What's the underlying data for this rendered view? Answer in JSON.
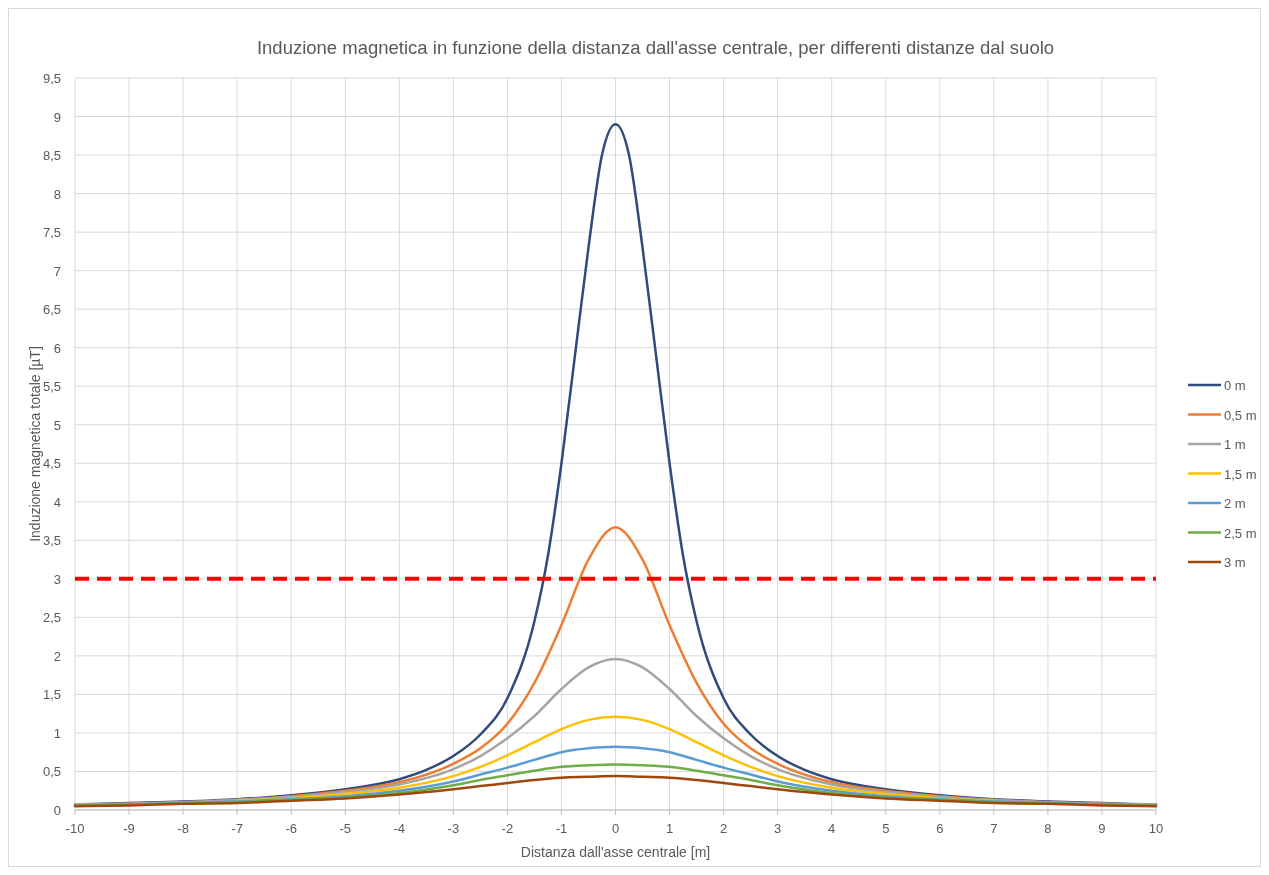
{
  "chart_data": {
    "type": "line",
    "title": "Induzione magnetica  in funzione della distanza dall'asse centrale, per differenti distanze dal suolo",
    "xlabel": "Distanza dall'asse centrale [m]",
    "ylabel": "Induzione magnetica totale [µT]",
    "xlim": [
      -10,
      10
    ],
    "xticks": [
      -10,
      -9,
      -8,
      -7,
      -6,
      -5,
      -4,
      -3,
      -2,
      -1,
      0,
      1,
      2,
      3,
      4,
      5,
      6,
      7,
      8,
      9,
      10
    ],
    "ylim": [
      0,
      9.5
    ],
    "yticks": [
      0,
      {
        "value": 0.5,
        "label": "0,5"
      },
      1,
      {
        "value": 1.5,
        "label": "1,5"
      },
      2,
      {
        "value": 2.5,
        "label": "2,5"
      },
      3,
      {
        "value": 3.5,
        "label": "3,5"
      },
      4,
      {
        "value": 4.5,
        "label": "4,5"
      },
      5,
      {
        "value": 5.5,
        "label": "5,5"
      },
      6,
      {
        "value": 6.5,
        "label": "6,5"
      },
      7,
      {
        "value": 7.5,
        "label": "7,5"
      },
      8,
      {
        "value": 8.5,
        "label": "8,5"
      },
      9,
      {
        "value": 9.5,
        "label": "9,5"
      }
    ],
    "grid": true,
    "legend": "right",
    "marker": "none",
    "ref_lines": [
      {
        "axis": "y",
        "value": 3,
        "color": "#ff0000",
        "line_style": "dashed"
      }
    ],
    "series": [
      {
        "name": "0 m",
        "color": "#2f4b7c",
        "x": [
          -10,
          -9,
          -8,
          -7,
          -6,
          -5,
          -4,
          -3.5,
          -3,
          -2.5,
          -2,
          -1.5,
          -1.25,
          -1,
          -0.75,
          -0.5,
          -0.25,
          0,
          0.25,
          0.5,
          0.75,
          1,
          1.25,
          1.5,
          2,
          2.5,
          3,
          3.5,
          4,
          5,
          6,
          7,
          8,
          9,
          10
        ],
        "values": [
          0.07,
          0.09,
          0.11,
          0.14,
          0.19,
          0.27,
          0.4,
          0.52,
          0.7,
          0.98,
          1.45,
          2.45,
          3.3,
          4.5,
          5.9,
          7.3,
          8.5,
          8.9,
          8.5,
          7.3,
          5.9,
          4.5,
          3.3,
          2.45,
          1.45,
          0.98,
          0.7,
          0.52,
          0.4,
          0.27,
          0.19,
          0.14,
          0.11,
          0.09,
          0.07
        ]
      },
      {
        "name": "0,5 m",
        "color": "#ed7d31",
        "x": [
          -10,
          -9,
          -8,
          -7,
          -6,
          -5,
          -4,
          -3,
          -2.5,
          -2,
          -1.5,
          -1,
          -0.5,
          0,
          0.5,
          1,
          1.5,
          2,
          2.5,
          3,
          4,
          5,
          6,
          7,
          8,
          9,
          10
        ],
        "values": [
          0.07,
          0.08,
          0.1,
          0.13,
          0.18,
          0.25,
          0.36,
          0.6,
          0.8,
          1.12,
          1.65,
          2.4,
          3.25,
          3.67,
          3.25,
          2.4,
          1.65,
          1.12,
          0.8,
          0.6,
          0.36,
          0.25,
          0.18,
          0.13,
          0.1,
          0.08,
          0.07
        ]
      },
      {
        "name": "1 m",
        "color": "#a5a5a5",
        "x": [
          -10,
          -9,
          -8,
          -7,
          -6,
          -5,
          -4,
          -3,
          -2.5,
          -2,
          -1.5,
          -1,
          -0.5,
          0,
          0.5,
          1,
          1.5,
          2,
          2.5,
          3,
          4,
          5,
          6,
          7,
          8,
          9,
          10
        ],
        "values": [
          0.07,
          0.08,
          0.1,
          0.13,
          0.17,
          0.23,
          0.33,
          0.53,
          0.7,
          0.93,
          1.22,
          1.57,
          1.85,
          1.96,
          1.85,
          1.57,
          1.22,
          0.93,
          0.7,
          0.53,
          0.33,
          0.23,
          0.17,
          0.13,
          0.1,
          0.08,
          0.07
        ]
      },
      {
        "name": "1,5 m",
        "color": "#ffc000",
        "x": [
          -7,
          -6,
          -5,
          -4,
          -3,
          -2.5,
          -2,
          -1.5,
          -1,
          -0.5,
          0,
          0.5,
          1,
          1.5,
          2,
          2.5,
          3,
          4,
          5,
          6,
          7
        ],
        "values": [
          0.12,
          0.15,
          0.21,
          0.29,
          0.44,
          0.56,
          0.71,
          0.88,
          1.05,
          1.17,
          1.21,
          1.17,
          1.05,
          0.88,
          0.71,
          0.56,
          0.44,
          0.29,
          0.21,
          0.15,
          0.12
        ]
      },
      {
        "name": "2 m",
        "color": "#5b9bd5",
        "x": [
          -10,
          -9,
          -8,
          -7,
          -6,
          -5,
          -4,
          -3,
          -2.5,
          -2,
          -1.5,
          -1,
          -0.5,
          0,
          0.5,
          1,
          1.5,
          2,
          2.5,
          3,
          4,
          5,
          6,
          7,
          8,
          9,
          10
        ],
        "values": [
          0.06,
          0.07,
          0.09,
          0.11,
          0.14,
          0.18,
          0.25,
          0.37,
          0.46,
          0.55,
          0.65,
          0.75,
          0.8,
          0.82,
          0.8,
          0.75,
          0.65,
          0.55,
          0.46,
          0.37,
          0.25,
          0.18,
          0.14,
          0.11,
          0.09,
          0.07,
          0.06
        ]
      },
      {
        "name": "2,5 m",
        "color": "#70ad47",
        "x": [
          -10,
          -9,
          -8,
          -7,
          -6,
          -5,
          -4,
          -3,
          -2.5,
          -2,
          -1.5,
          -1,
          -0.5,
          0,
          0.5,
          1,
          1.5,
          2,
          2.5,
          3,
          4,
          5,
          6,
          7,
          8,
          9,
          10
        ],
        "values": [
          0.06,
          0.07,
          0.08,
          0.1,
          0.13,
          0.16,
          0.22,
          0.32,
          0.39,
          0.45,
          0.51,
          0.56,
          0.58,
          0.59,
          0.58,
          0.56,
          0.51,
          0.45,
          0.39,
          0.32,
          0.22,
          0.16,
          0.13,
          0.1,
          0.08,
          0.07,
          0.06
        ]
      },
      {
        "name": "3 m",
        "color": "#9e480e",
        "x": [
          -10,
          -9,
          -8,
          -7,
          -6,
          -5,
          -4,
          -3,
          -2.5,
          -2,
          -1.5,
          -1,
          -0.5,
          0,
          0.5,
          1,
          1.5,
          2,
          2.5,
          3,
          4,
          5,
          6,
          7,
          8,
          9,
          10
        ],
        "values": [
          0.05,
          0.06,
          0.08,
          0.09,
          0.12,
          0.15,
          0.2,
          0.27,
          0.31,
          0.35,
          0.39,
          0.42,
          0.43,
          0.44,
          0.43,
          0.42,
          0.39,
          0.35,
          0.31,
          0.27,
          0.2,
          0.15,
          0.12,
          0.09,
          0.08,
          0.06,
          0.05
        ]
      }
    ]
  }
}
